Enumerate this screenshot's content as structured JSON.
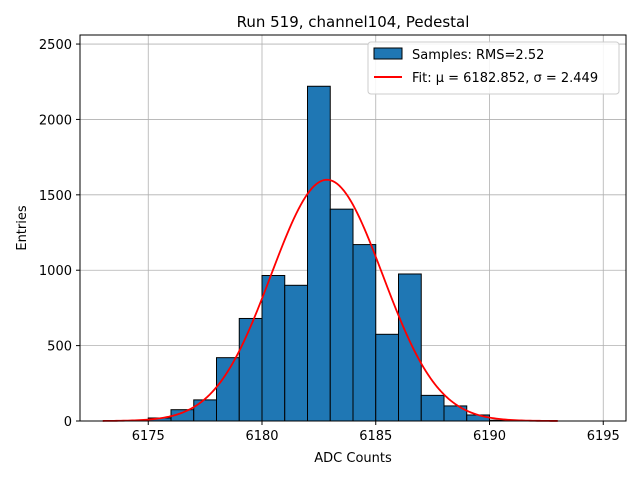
{
  "chart_data": {
    "type": "bar",
    "title": "Run 519, channel104, Pedestal",
    "xlabel": "ADC Counts",
    "ylabel": "Entries",
    "xlim": [
      6172.0,
      6196.0
    ],
    "ylim": [
      0,
      2560
    ],
    "xticks": [
      6175,
      6180,
      6185,
      6190,
      6195
    ],
    "yticks": [
      0,
      500,
      1000,
      1500,
      2000,
      2500
    ],
    "grid": true,
    "legend_position": "top-right",
    "histogram": {
      "name": "Samples: RMS=2.52",
      "color": "#1f77b4",
      "bin_width": 1,
      "bins": [
        {
          "x": 6175,
          "value": 20
        },
        {
          "x": 6176,
          "value": 75
        },
        {
          "x": 6177,
          "value": 140
        },
        {
          "x": 6178,
          "value": 420
        },
        {
          "x": 6179,
          "value": 680
        },
        {
          "x": 6180,
          "value": 965
        },
        {
          "x": 6181,
          "value": 900
        },
        {
          "x": 6182,
          "value": 2220
        },
        {
          "x": 6183,
          "value": 1405
        },
        {
          "x": 6184,
          "value": 1170
        },
        {
          "x": 6185,
          "value": 575
        },
        {
          "x": 6186,
          "value": 975
        },
        {
          "x": 6187,
          "value": 170
        },
        {
          "x": 6188,
          "value": 100
        },
        {
          "x": 6189,
          "value": 40
        },
        {
          "x": 6190,
          "value": 5
        }
      ]
    },
    "fit": {
      "name": "Fit: μ = 6182.852, σ = 2.449",
      "color": "#ff0000",
      "mu": 6182.852,
      "sigma": 2.449,
      "amplitude": 1600,
      "x_range": [
        6173,
        6193
      ]
    }
  }
}
